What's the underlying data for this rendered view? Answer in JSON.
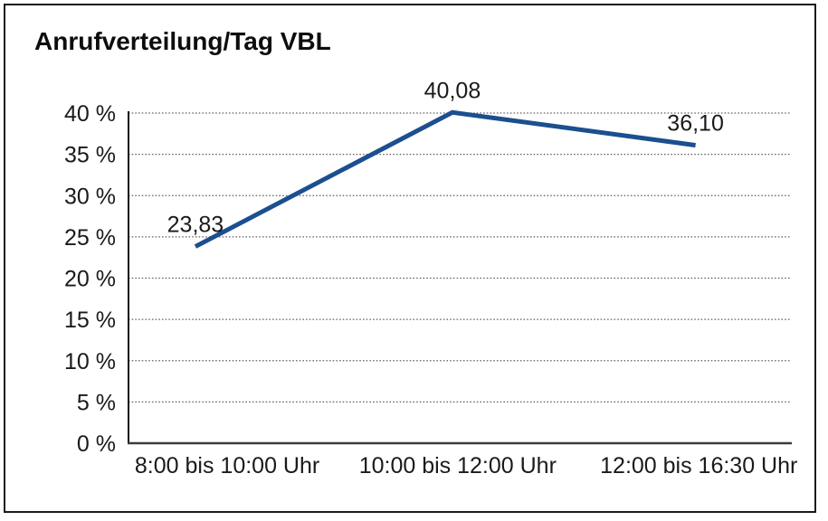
{
  "chart_data": {
    "type": "line",
    "title": "Anrufverteilung/Tag VBL",
    "categories": [
      "8:00 bis 10:00 Uhr",
      "10:00 bis 12:00 Uhr",
      "12:00 bis 16:30 Uhr"
    ],
    "values": [
      23.83,
      40.08,
      36.1
    ],
    "data_labels": [
      "23,83",
      "40,08",
      "36,10"
    ],
    "y_axis": {
      "min": 0,
      "max": 40,
      "tick_step": 5,
      "tick_labels": [
        "0 %",
        "5 %",
        "10 %",
        "15 %",
        "20 %",
        "25 %",
        "30 %",
        "35 %",
        "40 %"
      ]
    },
    "xlabel": "",
    "ylabel": "",
    "grid": "horizontal-dotted",
    "legend": "none",
    "line_color": "#1B4F8F",
    "label_color": "#1A1A1A",
    "background_color": "#FFFFFF",
    "border_color": "#1A1A1A"
  }
}
